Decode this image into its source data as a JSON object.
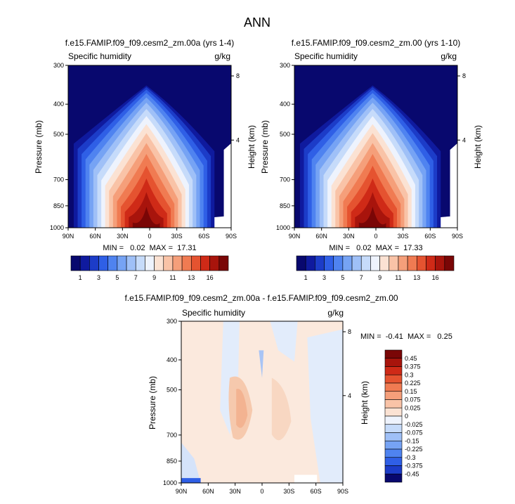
{
  "page_title": "ANN",
  "chart_data": [
    {
      "type": "heatmap",
      "title": "f.e15.FAMIP.f09_f09.cesm2_zm.00a (yrs 1-4)",
      "subtitle_left": "Specific humidity",
      "subtitle_right": "g/kg",
      "ylabel": "Pressure (mb)",
      "ylabel_right": "Height (km)",
      "x_ticks": [
        "90N",
        "60N",
        "30N",
        "0",
        "30S",
        "60S",
        "90S"
      ],
      "y_ticks": [
        "300",
        "400",
        "500",
        "700",
        "850",
        "1000"
      ],
      "y_ticks_right": [
        "8",
        "4"
      ],
      "stats": "MIN =   0.02  MAX =  17.31",
      "colorbar_labels": [
        "1",
        "3",
        "5",
        "7",
        "9",
        "11",
        "13",
        "16"
      ]
    },
    {
      "type": "heatmap",
      "title": "f.e15.FAMIP.f09_f09.cesm2_zm.00 (yrs 1-10)",
      "subtitle_left": "Specific humidity",
      "subtitle_right": "g/kg",
      "ylabel": "Pressure (mb)",
      "ylabel_right": "Height (km)",
      "x_ticks": [
        "90N",
        "60N",
        "30N",
        "0",
        "30S",
        "60S",
        "90S"
      ],
      "y_ticks": [
        "300",
        "400",
        "500",
        "700",
        "850",
        "1000"
      ],
      "y_ticks_right": [
        "8",
        "4"
      ],
      "stats": "MIN =   0.02  MAX =  17.33",
      "colorbar_labels": [
        "1",
        "3",
        "5",
        "7",
        "9",
        "11",
        "13",
        "16"
      ]
    },
    {
      "type": "heatmap",
      "title": "f.e15.FAMIP.f09_f09.cesm2_zm.00a - f.e15.FAMIP.f09_f09.cesm2_zm.00",
      "subtitle_left": "Specific humidity",
      "subtitle_right": "g/kg",
      "ylabel": "Pressure (mb)",
      "ylabel_right": "Height (km)",
      "x_ticks": [
        "90N",
        "60N",
        "30N",
        "0",
        "30S",
        "60S",
        "90S"
      ],
      "y_ticks": [
        "300",
        "400",
        "500",
        "700",
        "850",
        "1000"
      ],
      "y_ticks_right": [
        "8",
        "4"
      ],
      "stats": "MIN =  -0.41  MAX =   0.25",
      "colorbar_labels": [
        "0.45",
        "0.375",
        "0.3",
        "0.225",
        "0.15",
        "0.075",
        "0.025",
        "0",
        "-0.025",
        "-0.075",
        "-0.15",
        "-0.225",
        "-0.3",
        "-0.375",
        "-0.45"
      ]
    }
  ],
  "colors": {
    "seq": [
      "#08086e",
      "#0f1a9e",
      "#1c3cc8",
      "#2f5fe6",
      "#4f83f0",
      "#76a3f4",
      "#9fc0f7",
      "#c6dbfa",
      "#eef3fd",
      "#fbe2d3",
      "#f9c3a7",
      "#f59f7a",
      "#f07b52",
      "#e55330",
      "#cf2a17",
      "#a8140c",
      "#7a0606"
    ],
    "div": [
      "#7a0606",
      "#a8140c",
      "#cf2a17",
      "#e55330",
      "#f07b52",
      "#f59f7a",
      "#f9c3a7",
      "#fbe2d3",
      "#eef3fd",
      "#c6dbfa",
      "#9fc0f7",
      "#76a3f4",
      "#4f83f0",
      "#2f5fe6",
      "#1c3cc8",
      "#08086e"
    ]
  }
}
